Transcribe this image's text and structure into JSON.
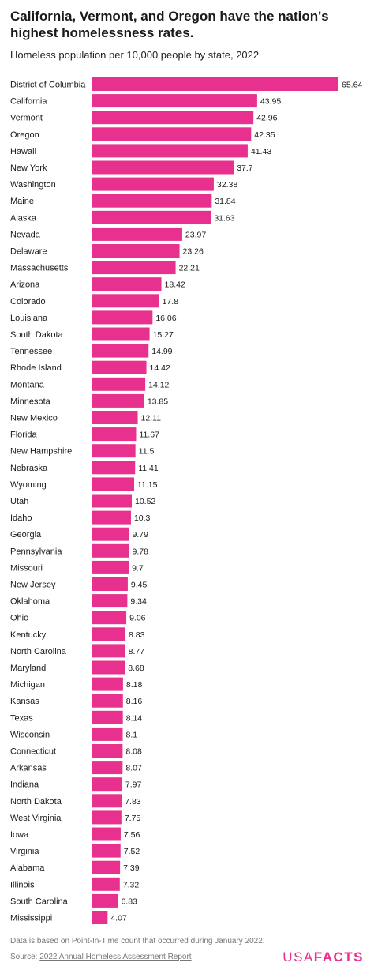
{
  "title": "California, Vermont, and Oregon have the nation's highest homelessness rates.",
  "subtitle": "Homeless population per 10,000 people by state, 2022",
  "footer": {
    "note": "Data is based on Point-In-Time count that occurred during January 2022.",
    "source_label": "Source:",
    "source_link": "2022 Annual Homeless Assessment Report"
  },
  "logo": {
    "part1": "USA",
    "part2": "FACTS"
  },
  "colors": {
    "bar": "#e8308f",
    "text": "#1a1a1a"
  },
  "chart_data": {
    "type": "bar",
    "orientation": "horizontal",
    "title": "California, Vermont, and Oregon have the nation's highest homelessness rates.",
    "subtitle": "Homeless population per 10,000 people by state, 2022",
    "xlabel": "",
    "ylabel": "",
    "grid": false,
    "categories": [
      "District of Columbia",
      "California",
      "Vermont",
      "Oregon",
      "Hawaii",
      "New York",
      "Washington",
      "Maine",
      "Alaska",
      "Nevada",
      "Delaware",
      "Massachusetts",
      "Arizona",
      "Colorado",
      "Louisiana",
      "South Dakota",
      "Tennessee",
      "Rhode Island",
      "Montana",
      "Minnesota",
      "New Mexico",
      "Florida",
      "New Hampshire",
      "Nebraska",
      "Wyoming",
      "Utah",
      "Idaho",
      "Georgia",
      "Pennsylvania",
      "Missouri",
      "New Jersey",
      "Oklahoma",
      "Ohio",
      "Kentucky",
      "North Carolina",
      "Maryland",
      "Michigan",
      "Kansas",
      "Texas",
      "Wisconsin",
      "Connecticut",
      "Arkansas",
      "Indiana",
      "North Dakota",
      "West Virginia",
      "Iowa",
      "Virginia",
      "Alabama",
      "Illinois",
      "South Carolina",
      "Mississippi"
    ],
    "values": [
      65.64,
      43.95,
      42.96,
      42.35,
      41.43,
      37.7,
      32.38,
      31.84,
      31.63,
      23.97,
      23.26,
      22.21,
      18.42,
      17.8,
      16.06,
      15.27,
      14.99,
      14.42,
      14.12,
      13.85,
      12.11,
      11.67,
      11.5,
      11.41,
      11.15,
      10.52,
      10.3,
      9.79,
      9.78,
      9.7,
      9.45,
      9.34,
      9.06,
      8.83,
      8.77,
      8.68,
      8.18,
      8.16,
      8.14,
      8.1,
      8.08,
      8.07,
      7.97,
      7.83,
      7.75,
      7.56,
      7.52,
      7.39,
      7.32,
      6.83,
      4.07
    ],
    "value_labels": [
      "65.64",
      "43.95",
      "42.96",
      "42.35",
      "41.43",
      "37.7",
      "32.38",
      "31.84",
      "31.63",
      "23.97",
      "23.26",
      "22.21",
      "18.42",
      "17.8",
      "16.06",
      "15.27",
      "14.99",
      "14.42",
      "14.12",
      "13.85",
      "12.11",
      "11.67",
      "11.5",
      "11.41",
      "11.15",
      "10.52",
      "10.3",
      "9.79",
      "9.78",
      "9.7",
      "9.45",
      "9.34",
      "9.06",
      "8.83",
      "8.77",
      "8.68",
      "8.18",
      "8.16",
      "8.14",
      "8.1",
      "8.08",
      "8.07",
      "7.97",
      "7.83",
      "7.75",
      "7.56",
      "7.52",
      "7.39",
      "7.32",
      "6.83",
      "4.07"
    ],
    "xlim": [
      0,
      65.64
    ]
  }
}
